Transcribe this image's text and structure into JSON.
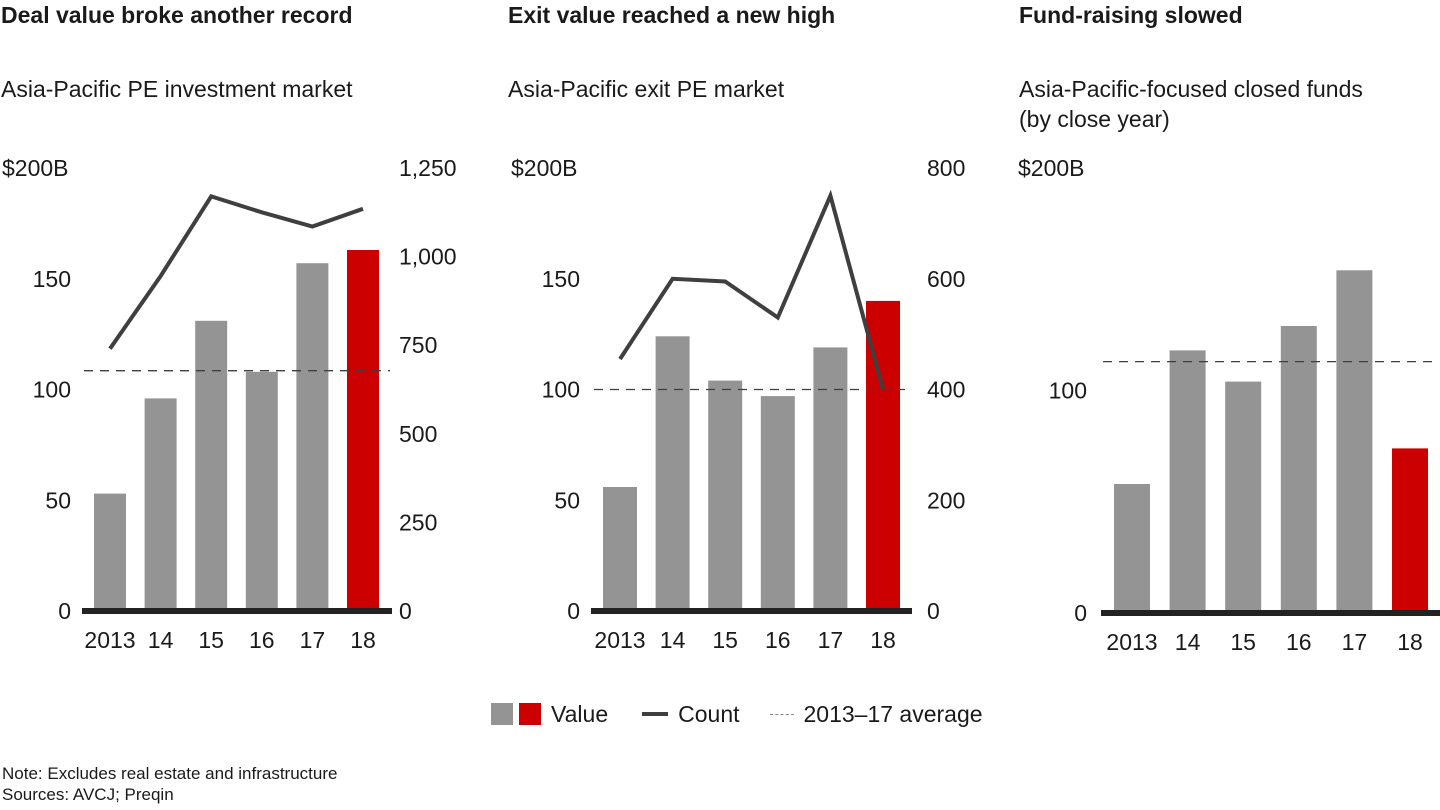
{
  "colors": {
    "bar_default": "#949494",
    "bar_highlight": "#cc0000",
    "count_line": "#3f3f3f",
    "average_line": "#3f3f3f",
    "axis": "#222222"
  },
  "legend": {
    "value_label": "Value",
    "count_label": "Count",
    "average_label": "2013–17 average"
  },
  "notes": {
    "note": "Note: Excludes real estate and infrastructure",
    "sources": "Sources: AVCJ; Preqin"
  },
  "chart_data": [
    {
      "type": "bar",
      "title": "Deal value broke another record",
      "subtitle": "Asia-Pacific PE investment market",
      "categories": [
        "2013",
        "14",
        "15",
        "16",
        "17",
        "18"
      ],
      "highlight_category": "18",
      "ylabel": "$B",
      "ylim": [
        0,
        200
      ],
      "y_ticks": [
        "0",
        "50",
        "100",
        "150",
        "$200B"
      ],
      "y_tick_values": [
        0,
        50,
        100,
        150,
        200
      ],
      "series": [
        {
          "name": "Value",
          "type": "bar",
          "axis": "left",
          "values": [
            53,
            96,
            131,
            108,
            157,
            163
          ]
        },
        {
          "name": "Count",
          "type": "line",
          "axis": "right",
          "values": [
            740,
            945,
            1170,
            1125,
            1085,
            1135
          ]
        }
      ],
      "average": {
        "name": "2013–17 average",
        "value": 108.5
      },
      "y2lim": [
        0,
        1250
      ],
      "y2_ticks": [
        "0",
        "250",
        "500",
        "750",
        "1,000",
        "1,250"
      ],
      "y2_tick_values": [
        0,
        250,
        500,
        750,
        1000,
        1250
      ],
      "grid": false
    },
    {
      "type": "bar",
      "title": "Exit value reached a new high",
      "subtitle": "Asia-Pacific exit PE market",
      "categories": [
        "2013",
        "14",
        "15",
        "16",
        "17",
        "18"
      ],
      "highlight_category": "18",
      "ylabel": "$B",
      "ylim": [
        0,
        200
      ],
      "y_ticks": [
        "0",
        "50",
        "100",
        "150",
        "$200B"
      ],
      "y_tick_values": [
        0,
        50,
        100,
        150,
        200
      ],
      "series": [
        {
          "name": "Value",
          "type": "bar",
          "axis": "left",
          "values": [
            56,
            124,
            104,
            97,
            119,
            140
          ]
        },
        {
          "name": "Count",
          "type": "line",
          "axis": "right",
          "values": [
            455,
            600,
            595,
            530,
            750,
            400
          ]
        }
      ],
      "average": {
        "name": "2013–17 average",
        "value": 100
      },
      "y2lim": [
        0,
        800
      ],
      "y2_ticks": [
        "0",
        "200",
        "400",
        "600",
        "800"
      ],
      "y2_tick_values": [
        0,
        200,
        400,
        600,
        800
      ],
      "grid": false
    },
    {
      "type": "bar",
      "title": "Fund-raising slowed",
      "subtitle": "Asia-Pacific-focused closed funds",
      "subtitle_line2": "(by close year)",
      "categories": [
        "2013",
        "14",
        "15",
        "16",
        "17",
        "18"
      ],
      "highlight_category": "18",
      "ylabel": "$B",
      "ylim": [
        0,
        200
      ],
      "y_ticks": [
        "0",
        "100",
        "$200B"
      ],
      "y_tick_values": [
        0,
        100,
        200
      ],
      "series": [
        {
          "name": "Value",
          "type": "bar",
          "axis": "left",
          "values": [
            58,
            118,
            104,
            129,
            154,
            74
          ]
        }
      ],
      "average": {
        "name": "2013–17 average",
        "value": 113
      },
      "grid": false
    }
  ]
}
